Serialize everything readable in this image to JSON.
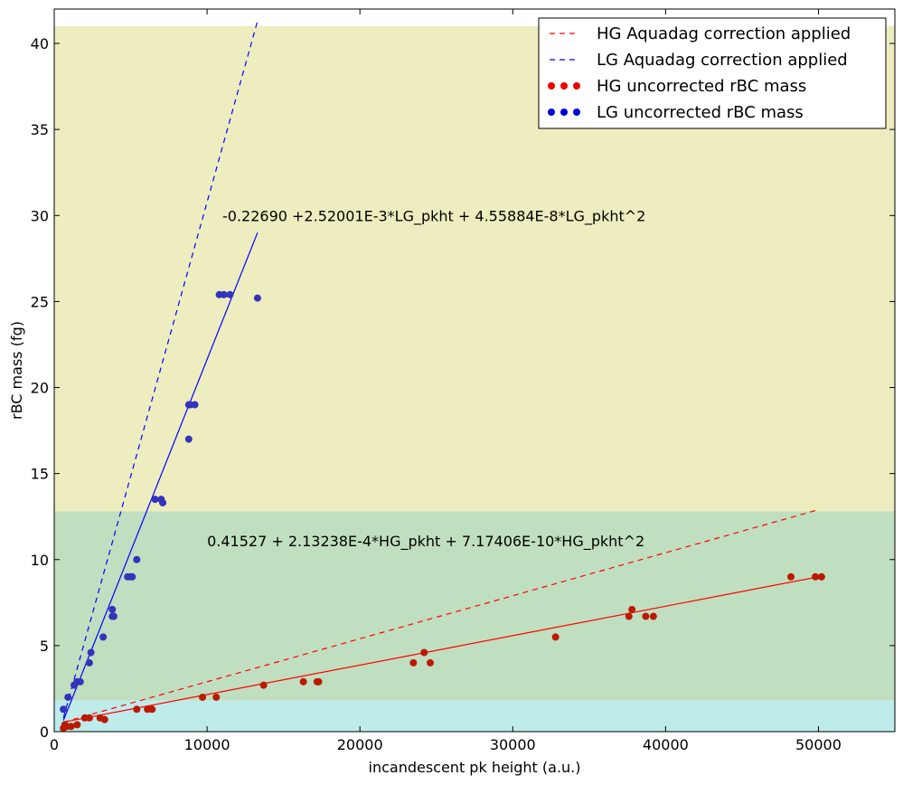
{
  "chart_data": {
    "type": "scatter",
    "xlabel": "incandescent pk height (a.u.)",
    "ylabel": "rBC mass (fg)",
    "xlim": [
      0,
      55000
    ],
    "ylim": [
      0,
      42
    ],
    "x_ticks": [
      0,
      10000,
      20000,
      30000,
      40000,
      50000
    ],
    "y_ticks": [
      0,
      5,
      10,
      15,
      20,
      25,
      30,
      35,
      40
    ],
    "grid": false,
    "legend_position": "top-right",
    "background_bands": [
      {
        "y_from": 0,
        "y_to": 1.8,
        "color": "#bdeceb"
      },
      {
        "y_from": 1.8,
        "y_to": 12.8,
        "color": "#c0dfc0"
      },
      {
        "y_from": 12.8,
        "y_to": 41,
        "color": "#eeedc0"
      }
    ],
    "series": [
      {
        "name": "HG Aquadag correction applied",
        "kind": "dashed-line",
        "color": "#ff0000",
        "x": [
          600,
          50000
        ],
        "y": [
          0.55,
          12.9
        ]
      },
      {
        "name": "LG Aquadag correction applied",
        "kind": "dashed-line",
        "color": "#0000ff",
        "x": [
          600,
          13300
        ],
        "y": [
          0.8,
          41.3
        ]
      },
      {
        "name": "HG uncorrected rBC mass",
        "kind": "points",
        "color": "#bb1a00",
        "x": [
          600,
          700,
          800,
          1100,
          1500,
          2000,
          2300,
          3000,
          3300,
          5400,
          6100,
          6400,
          9700,
          10600,
          13700,
          16300,
          17200,
          17300,
          23500,
          24200,
          24600,
          32800,
          37600,
          37800,
          38700,
          39200,
          48200,
          49800,
          50200
        ],
        "y": [
          0.2,
          0.4,
          0.3,
          0.3,
          0.4,
          0.8,
          0.8,
          0.8,
          0.7,
          1.3,
          1.3,
          1.3,
          2.0,
          2.0,
          2.7,
          2.9,
          2.9,
          2.9,
          4.0,
          4.6,
          4.0,
          5.5,
          6.7,
          7.1,
          6.7,
          6.7,
          9.0,
          9.0,
          9.0
        ]
      },
      {
        "name": "LG uncorrected rBC mass",
        "kind": "points",
        "color": "#3333bb",
        "x": [
          600,
          900,
          1300,
          1500,
          1700,
          2300,
          2400,
          3200,
          3800,
          3800,
          3900,
          4800,
          5000,
          5100,
          5400,
          6600,
          7000,
          7100,
          8800,
          8900,
          9200,
          10800,
          11100,
          11500,
          13300,
          8800
        ],
        "y": [
          1.3,
          2.0,
          2.7,
          2.9,
          2.9,
          4.0,
          4.6,
          5.5,
          6.7,
          7.1,
          6.7,
          9.0,
          9.0,
          9.0,
          10.0,
          13.5,
          13.5,
          13.3,
          19.0,
          19.0,
          19.0,
          25.4,
          25.4,
          25.4,
          25.2,
          17.0
        ]
      },
      {
        "name": "",
        "kind": "fit-line",
        "color": "#ff0000",
        "x": [
          600,
          50000
        ],
        "y": [
          0.55,
          9.0
        ]
      },
      {
        "name": "",
        "kind": "fit-line",
        "color": "#0000ff",
        "x": [
          600,
          13300
        ],
        "y": [
          0.65,
          29.0
        ]
      }
    ],
    "annotations": [
      {
        "text": "-0.22690 +2.52001E-3*LG_pkht + 4.55884E-8*LG_pkht^2",
        "x": 11000,
        "y": 30.0
      },
      {
        "text": "0.41527 + 2.13238E-4*HG_pkht + 7.17406E-10*HG_pkht^2",
        "x": 10000,
        "y": 11.1
      }
    ]
  }
}
